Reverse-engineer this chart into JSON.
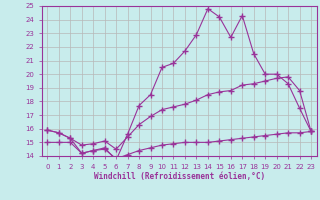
{
  "xlabel": "Windchill (Refroidissement éolien,°C)",
  "bg_color": "#c8ecec",
  "grid_color": "#b8b8b8",
  "line_color": "#993399",
  "hours": [
    0,
    1,
    2,
    3,
    4,
    5,
    6,
    7,
    8,
    9,
    10,
    11,
    12,
    13,
    14,
    15,
    16,
    17,
    18,
    19,
    20,
    21,
    22,
    23
  ],
  "temp_line": [
    15.9,
    15.7,
    15.3,
    14.2,
    14.4,
    14.6,
    13.7,
    15.6,
    17.7,
    18.5,
    20.5,
    20.8,
    21.7,
    22.9,
    24.8,
    24.2,
    22.7,
    24.3,
    21.5,
    20.0,
    20.0,
    19.3,
    17.5,
    15.8
  ],
  "avg_line": [
    15.9,
    15.7,
    15.3,
    14.8,
    14.9,
    15.1,
    14.5,
    15.4,
    16.3,
    16.9,
    17.4,
    17.6,
    17.8,
    18.1,
    18.5,
    18.7,
    18.8,
    19.2,
    19.3,
    19.5,
    19.7,
    19.8,
    18.8,
    15.8
  ],
  "min_line": [
    15.0,
    15.0,
    15.0,
    14.2,
    14.4,
    14.5,
    13.8,
    14.1,
    14.4,
    14.6,
    14.8,
    14.9,
    15.0,
    15.0,
    15.0,
    15.1,
    15.2,
    15.3,
    15.4,
    15.5,
    15.6,
    15.7,
    15.7,
    15.8
  ],
  "ylim_min": 14,
  "ylim_max": 25,
  "yticks": [
    14,
    15,
    16,
    17,
    18,
    19,
    20,
    21,
    22,
    23,
    24,
    25
  ],
  "xticks": [
    0,
    1,
    2,
    3,
    4,
    5,
    6,
    7,
    8,
    9,
    10,
    11,
    12,
    13,
    14,
    15,
    16,
    17,
    18,
    19,
    20,
    21,
    22,
    23
  ]
}
